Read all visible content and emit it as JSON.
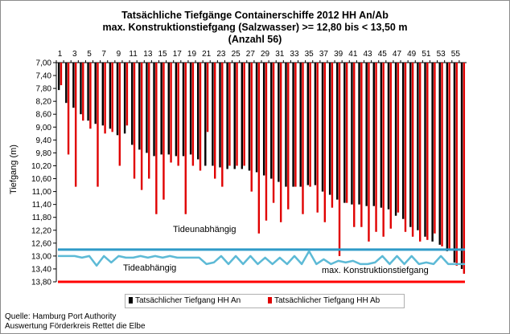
{
  "chart_data": {
    "type": "bar",
    "title": "Tatsächliche Tiefgänge Containerschiffe  2012 HH An/Ab",
    "subtitle": "max. Konstruktionstiefgang  (Salzwasser) >= 12,80 bis < 13,50 m",
    "subtitle2": "(Anzahl 56)",
    "ylabel": "Tiefgang (m)",
    "ylim": [
      7.0,
      13.8
    ],
    "y_reversed": true,
    "y_ticks": [
      "7,00",
      "7,40",
      "7,80",
      "8,20",
      "8,60",
      "9,00",
      "9,40",
      "9,80",
      "10,20",
      "10,60",
      "11,00",
      "11,40",
      "11,80",
      "12,20",
      "12,60",
      "13,00",
      "13,40",
      "13,80"
    ],
    "x_ticks": [
      "1",
      "3",
      "5",
      "7",
      "9",
      "11",
      "13",
      "15",
      "17",
      "19",
      "21",
      "23",
      "25",
      "27",
      "29",
      "31",
      "33",
      "35",
      "37",
      "39",
      "41",
      "43",
      "45",
      "47",
      "49",
      "51",
      "53",
      "55"
    ],
    "categories": [
      1,
      2,
      3,
      4,
      5,
      6,
      7,
      8,
      9,
      10,
      11,
      12,
      13,
      14,
      15,
      16,
      17,
      18,
      19,
      20,
      21,
      22,
      23,
      24,
      25,
      26,
      27,
      28,
      29,
      30,
      31,
      32,
      33,
      34,
      35,
      36,
      37,
      38,
      39,
      40,
      41,
      42,
      43,
      44,
      45,
      46,
      47,
      48,
      49,
      50,
      51,
      52,
      53,
      54,
      55,
      56
    ],
    "series": [
      {
        "name": "Tatsächlicher Tiefgang HH An",
        "color": "#000000",
        "values": [
          7.85,
          8.25,
          8.4,
          8.6,
          8.8,
          8.9,
          8.95,
          9.05,
          9.25,
          9.2,
          9.55,
          9.7,
          9.8,
          9.9,
          9.85,
          9.85,
          9.9,
          9.9,
          9.85,
          10.0,
          10.2,
          10.2,
          10.25,
          10.3,
          10.3,
          10.3,
          10.35,
          10.4,
          10.5,
          10.6,
          10.7,
          10.85,
          10.85,
          10.85,
          10.8,
          10.8,
          11.0,
          11.1,
          11.25,
          11.35,
          11.4,
          11.4,
          11.45,
          11.45,
          11.5,
          11.55,
          11.75,
          11.85,
          12.1,
          12.2,
          12.4,
          12.55,
          12.65,
          12.85,
          13.2,
          13.4
        ]
      },
      {
        "name": "Tatsächlicher Tiefgang HH Ab",
        "color": "#e00000",
        "values": [
          7.7,
          9.85,
          10.85,
          8.8,
          9.05,
          10.85,
          9.2,
          9.15,
          10.2,
          8.95,
          10.6,
          10.95,
          10.6,
          11.7,
          11.25,
          10.1,
          10.2,
          11.7,
          10.2,
          10.35,
          9.15,
          10.6,
          10.85,
          10.2,
          10.2,
          10.2,
          11.0,
          12.3,
          11.9,
          11.35,
          11.95,
          11.55,
          10.85,
          11.7,
          10.85,
          11.65,
          11.95,
          11.5,
          13.0,
          11.35,
          12.1,
          12.1,
          12.55,
          12.25,
          12.4,
          12.15,
          11.65,
          12.25,
          12.4,
          12.55,
          12.5,
          12.3,
          12.7,
          12.8,
          13.3,
          13.55
        ]
      }
    ],
    "reference_lines": [
      {
        "name": "max. Konstruktionstiefgang",
        "color": "#2e9ac8",
        "value": 12.8
      },
      {
        "name": "Tideabhängig",
        "color": "#5dbad6",
        "values": [
          13.0,
          13.0,
          13.0,
          13.05,
          13.0,
          13.3,
          13.0,
          13.2,
          13.0,
          13.05,
          13.05,
          13.0,
          13.05,
          13.0,
          13.05,
          13.0,
          13.05,
          13.05,
          13.05,
          13.05,
          13.25,
          13.2,
          13.0,
          13.25,
          13.0,
          13.25,
          13.0,
          13.25,
          13.05,
          13.25,
          13.05,
          13.25,
          13.0,
          13.25,
          12.85,
          13.25,
          13.1,
          13.25,
          13.15,
          13.2,
          13.15,
          13.25,
          13.25,
          13.2,
          13.0,
          13.25,
          13.0,
          13.25,
          13.0,
          13.25,
          13.2,
          13.25,
          13.0,
          13.25,
          13.25,
          13.25
        ]
      },
      {
        "name": "Tideunabhängig",
        "color": "#ff0000",
        "value": 13.8
      }
    ],
    "annotations": [
      "Tideunabhängig",
      "Tideabhängig",
      "max. Konstruktionstiefgang"
    ]
  },
  "footer": {
    "line1": "Quelle: Hamburg Port Authority",
    "line2": "Auswertung Förderkreis Rettet die Elbe"
  }
}
